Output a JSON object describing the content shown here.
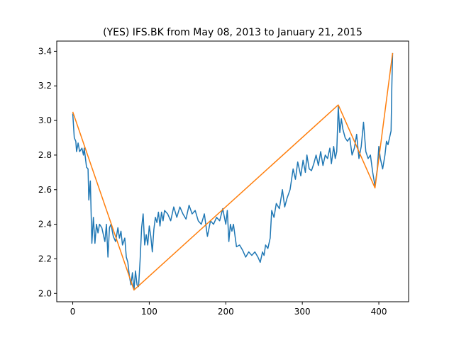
{
  "chart_data": {
    "type": "line",
    "title": "(YES) IFS.BK from May 08, 2013 to January 21, 2015",
    "series": [
      {
        "color": "#1f77b4",
        "x": [
          0,
          2,
          4,
          5,
          7,
          9,
          12,
          14,
          15,
          18,
          20,
          21,
          23,
          25,
          27,
          29,
          31,
          33,
          35,
          38,
          40,
          42,
          44,
          46,
          48,
          50,
          53,
          56,
          59,
          61,
          63,
          65,
          68,
          70,
          72,
          74,
          76,
          78,
          80,
          82,
          84,
          86,
          88,
          90,
          92,
          94,
          96,
          98,
          100,
          102,
          104,
          106,
          108,
          110,
          112,
          114,
          116,
          118,
          120,
          124,
          128,
          132,
          136,
          140,
          144,
          148,
          152,
          156,
          160,
          164,
          168,
          172,
          176,
          180,
          184,
          188,
          192,
          196,
          200,
          202,
          204,
          206,
          208,
          210,
          214,
          218,
          222,
          226,
          230,
          234,
          238,
          242,
          245,
          248,
          250,
          252,
          255,
          258,
          260,
          263,
          266,
          270,
          274,
          277,
          280,
          284,
          288,
          291,
          294,
          298,
          301,
          304,
          306,
          309,
          312,
          315,
          318,
          321,
          324,
          327,
          330,
          333,
          336,
          338,
          341,
          343,
          345,
          347,
          349,
          351,
          353,
          356,
          359,
          362,
          365,
          368,
          371,
          374,
          377,
          380,
          383,
          386,
          389,
          392,
          395,
          398,
          400,
          402,
          405,
          408,
          410,
          412,
          415,
          416,
          417,
          418
        ],
        "values": [
          3.04,
          2.9,
          2.88,
          2.82,
          2.87,
          2.82,
          2.84,
          2.8,
          2.84,
          2.73,
          2.72,
          2.54,
          2.65,
          2.29,
          2.44,
          2.29,
          2.4,
          2.35,
          2.4,
          2.38,
          2.34,
          2.3,
          2.4,
          2.21,
          2.38,
          2.4,
          2.33,
          2.3,
          2.38,
          2.32,
          2.36,
          2.28,
          2.32,
          2.21,
          2.18,
          2.1,
          2.05,
          2.12,
          2.02,
          2.13,
          2.05,
          2.04,
          2.19,
          2.38,
          2.46,
          2.28,
          2.34,
          2.28,
          2.39,
          2.33,
          2.24,
          2.37,
          2.44,
          2.41,
          2.47,
          2.39,
          2.47,
          2.42,
          2.48,
          2.46,
          2.42,
          2.5,
          2.44,
          2.5,
          2.46,
          2.43,
          2.51,
          2.46,
          2.48,
          2.42,
          2.4,
          2.46,
          2.33,
          2.42,
          2.4,
          2.44,
          2.42,
          2.49,
          2.4,
          2.48,
          2.3,
          2.4,
          2.36,
          2.4,
          2.27,
          2.28,
          2.25,
          2.21,
          2.24,
          2.22,
          2.24,
          2.21,
          2.18,
          2.24,
          2.22,
          2.28,
          2.26,
          2.32,
          2.48,
          2.44,
          2.52,
          2.49,
          2.6,
          2.5,
          2.55,
          2.6,
          2.72,
          2.66,
          2.76,
          2.68,
          2.77,
          2.7,
          2.8,
          2.72,
          2.71,
          2.75,
          2.8,
          2.74,
          2.82,
          2.74,
          2.8,
          2.78,
          2.84,
          2.75,
          2.85,
          2.78,
          2.82,
          3.08,
          2.93,
          3.01,
          2.95,
          2.9,
          2.88,
          2.9,
          2.8,
          2.84,
          2.92,
          2.78,
          2.85,
          2.99,
          2.82,
          2.78,
          2.8,
          2.7,
          2.62,
          2.72,
          2.85,
          2.78,
          2.72,
          2.8,
          2.88,
          2.86,
          2.92,
          2.94,
          3.2,
          3.39
        ]
      },
      {
        "color": "#ff7f0e",
        "x": [
          0,
          80,
          347,
          395,
          418
        ],
        "values": [
          3.05,
          2.02,
          3.09,
          2.61,
          3.39
        ]
      }
    ],
    "xlim": [
      -20.9,
      438.9
    ],
    "ylim": [
      1.952,
      3.459
    ],
    "xticks": [
      0,
      100,
      200,
      300,
      400
    ],
    "yticks": [
      {
        "value": 2,
        "label": "2.0"
      },
      2.2,
      2.4,
      2.6,
      2.8,
      {
        "value": 3,
        "label": "3.0"
      },
      3.2,
      3.4
    ],
    "grid": false
  }
}
